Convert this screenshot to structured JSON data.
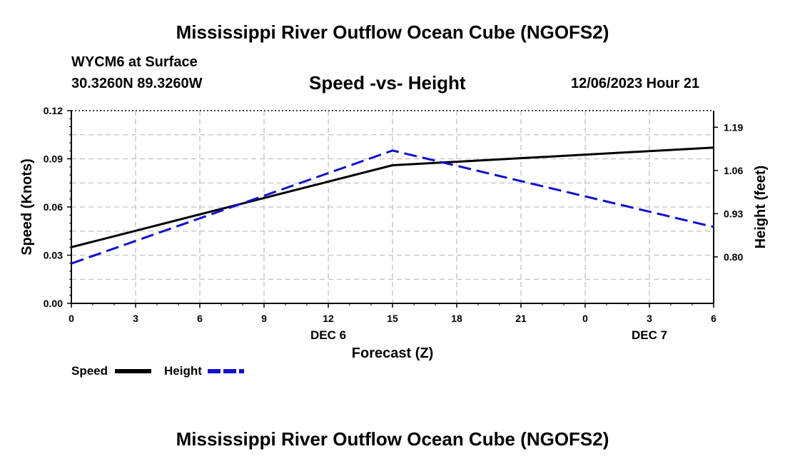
{
  "header": {
    "title": "Mississippi River Outflow Ocean Cube (NGOFS2)",
    "station": "WYCM6 at Surface",
    "coords": "30.3260N  89.3260W",
    "plot_title": "Speed -vs- Height",
    "datetime": "12/06/2023 Hour 21"
  },
  "footer": {
    "title": "Mississippi River Outflow Ocean Cube (NGOFS2)"
  },
  "colors": {
    "speed": "#000000",
    "height": "#1010cc",
    "grid": "#c0c0c0"
  },
  "chart_data": {
    "type": "line",
    "title": "Speed -vs- Height",
    "xlabel": "Forecast (Z)",
    "ylabel": "Speed (Knots)",
    "y2label": "Height (feet)",
    "x": [
      0,
      3,
      6,
      9,
      12,
      15,
      18,
      21,
      24,
      27,
      30
    ],
    "x_tick_labels": [
      "0",
      "3",
      "6",
      "9",
      "12",
      "15",
      "18",
      "21",
      "0",
      "3",
      "6"
    ],
    "date_labels": [
      {
        "x": 12,
        "label": "DEC 6"
      },
      {
        "x": 27,
        "label": "DEC 7"
      }
    ],
    "ylim": [
      0,
      0.12
    ],
    "y_ticks": [
      0,
      0.03,
      0.06,
      0.09,
      0.12
    ],
    "y_tick_labels": [
      "0.00",
      "0.03",
      "0.06",
      "0.09",
      "0.12"
    ],
    "y2lim": [
      0.66,
      1.24
    ],
    "y2_ticks": [
      0.8,
      0.93,
      1.06,
      1.19
    ],
    "y2_tick_labels": [
      "0.80",
      "0.93",
      "1.06",
      "1.19"
    ],
    "grid": true,
    "series": [
      {
        "name": "Speed",
        "axis": "left",
        "style": "solid",
        "x": [
          0,
          15,
          30
        ],
        "values": [
          0.035,
          0.086,
          0.097
        ]
      },
      {
        "name": "Height",
        "axis": "right",
        "style": "dashed",
        "x": [
          0,
          15,
          30
        ],
        "values": [
          0.78,
          1.12,
          0.89
        ]
      }
    ],
    "legend": {
      "placement": "bottom-left",
      "items": [
        "Speed",
        "Height"
      ]
    }
  }
}
